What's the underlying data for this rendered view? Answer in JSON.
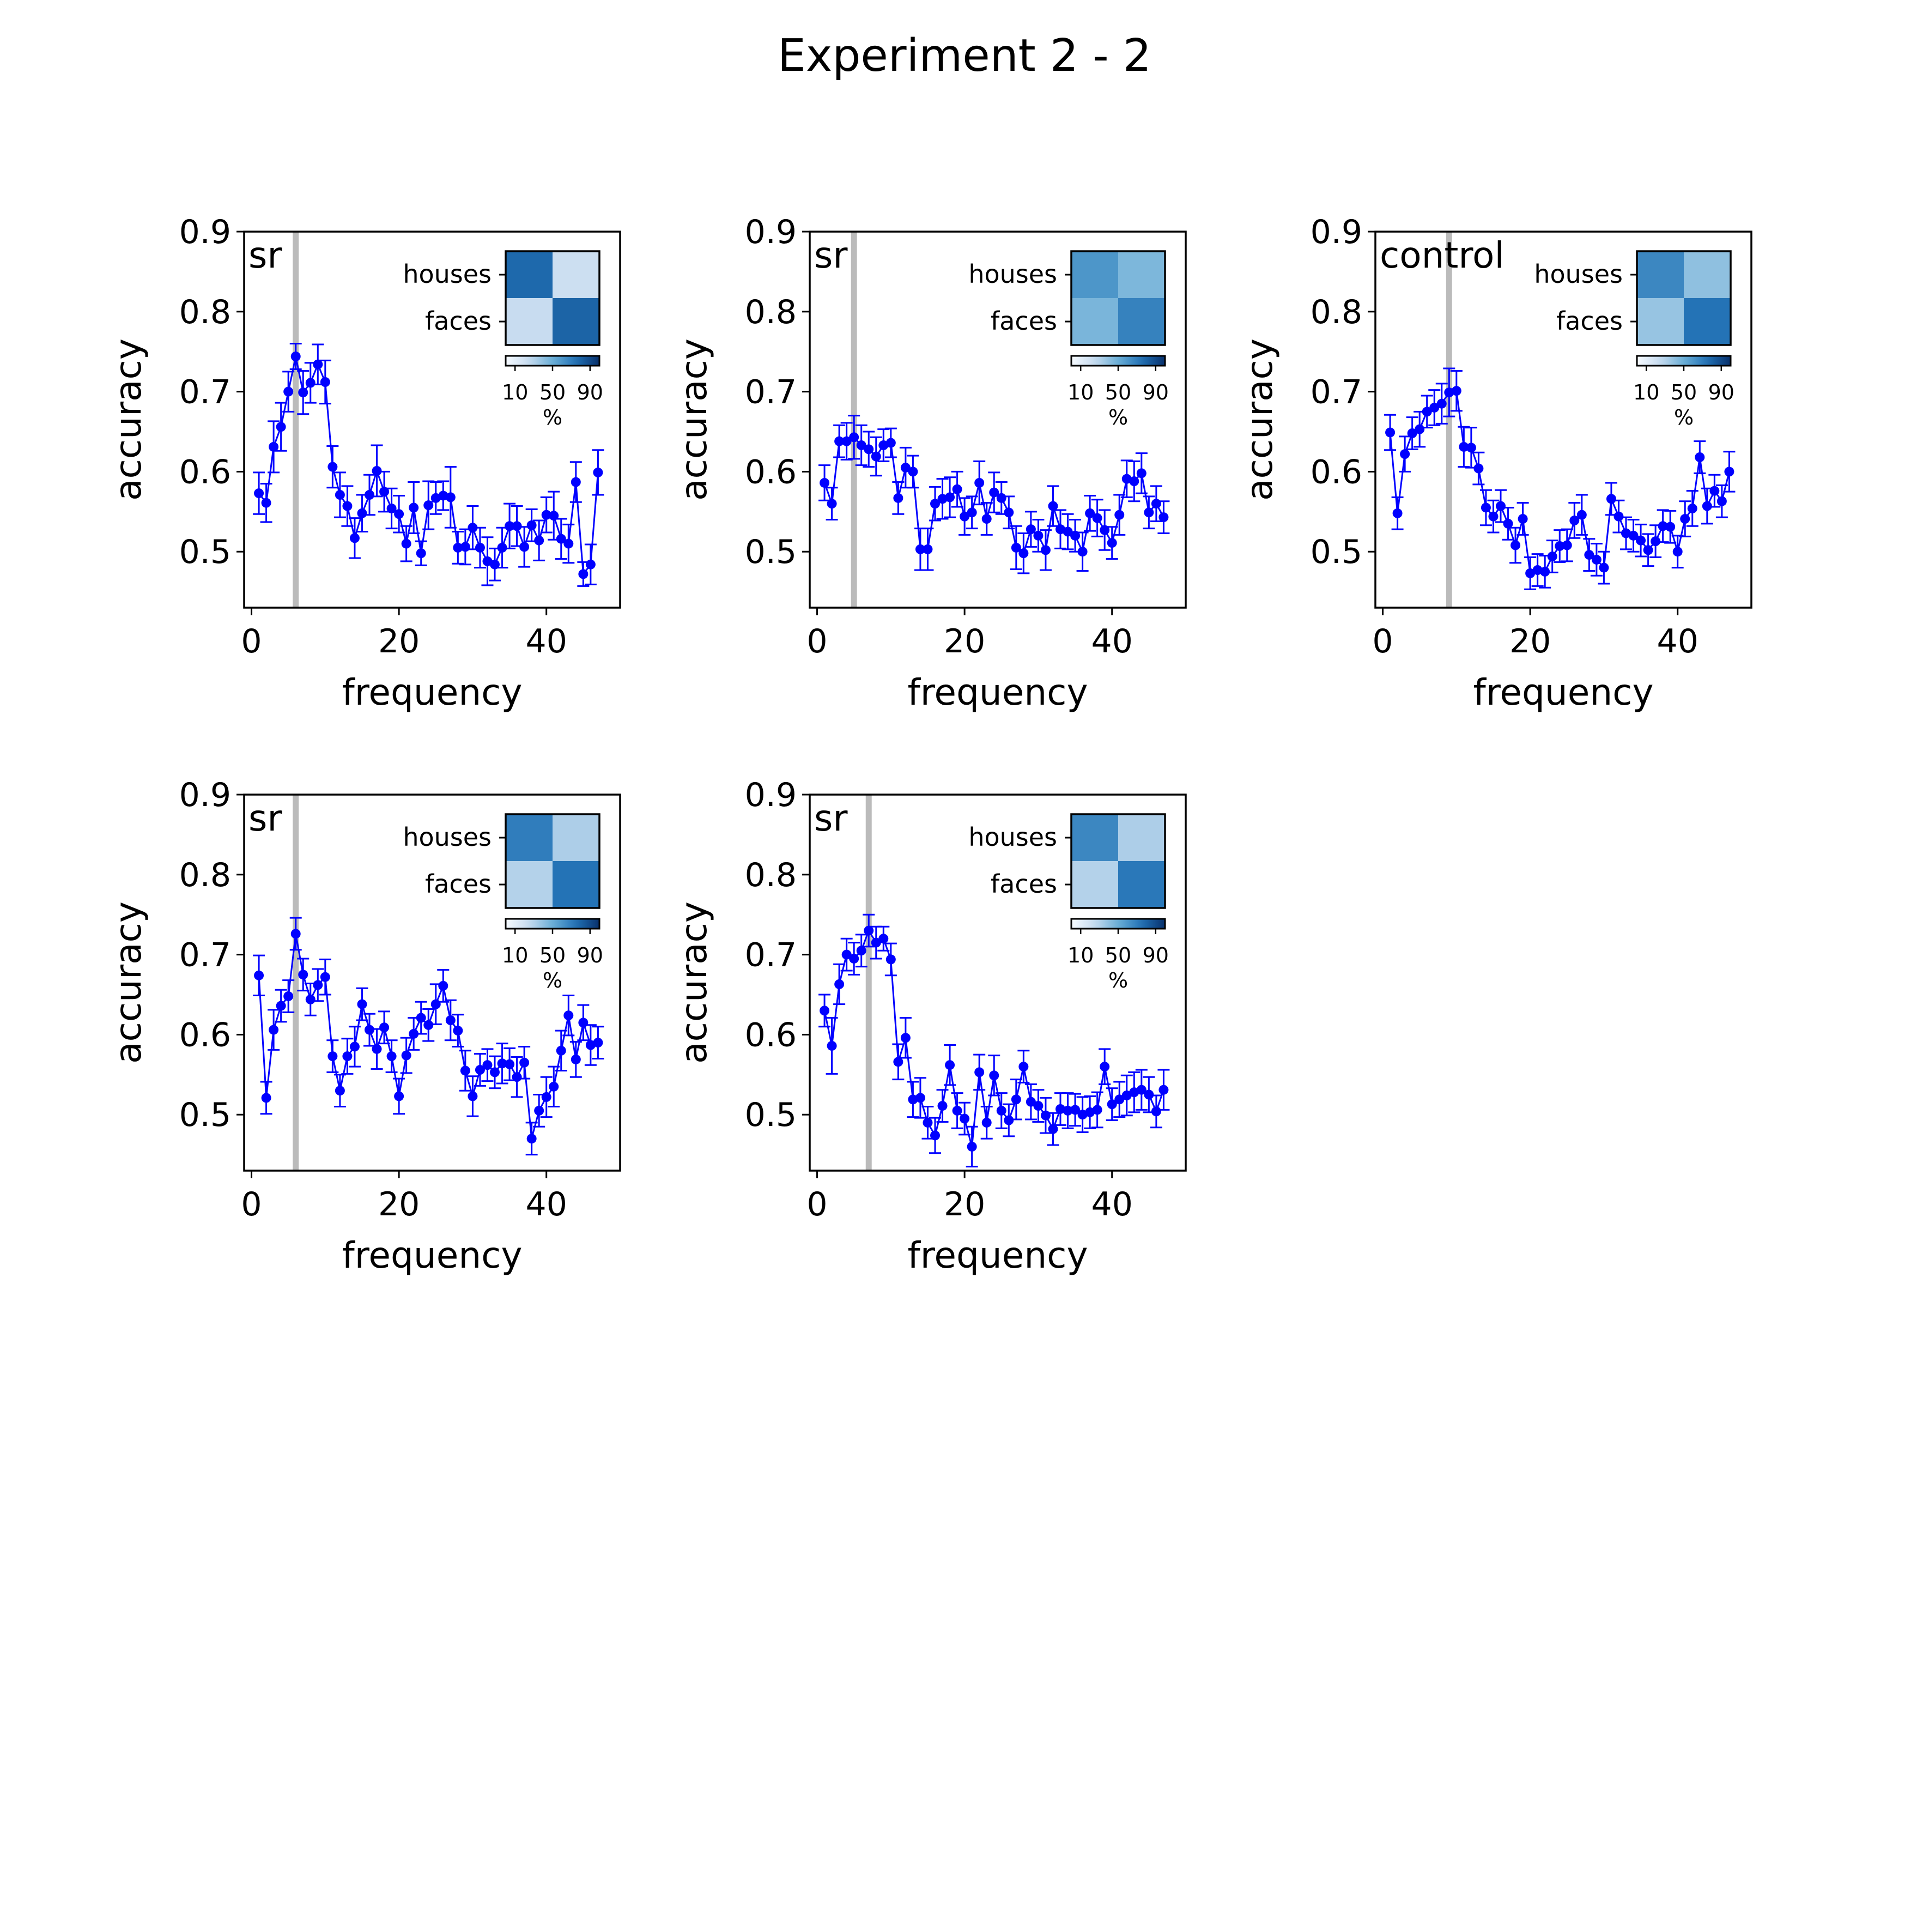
{
  "figure": {
    "title": "Experiment 2 - 2"
  },
  "chart_data": [
    {
      "type": "line",
      "label": "sr",
      "xlabel": "frequency",
      "ylabel": "accuracy",
      "xlim": [
        -1,
        50
      ],
      "ylim": [
        0.43,
        0.9
      ],
      "xticks": [
        0,
        20,
        40
      ],
      "yticks": [
        0.5,
        0.6,
        0.7,
        0.8,
        0.9
      ],
      "marker_x": 6,
      "x": [
        1,
        2,
        3,
        4,
        5,
        6,
        7,
        8,
        9,
        10,
        11,
        12,
        13,
        14,
        15,
        16,
        17,
        18,
        19,
        20,
        21,
        22,
        23,
        24,
        25,
        26,
        27,
        28,
        29,
        30,
        31,
        32,
        33,
        34,
        35,
        36,
        37,
        38,
        39,
        40,
        41,
        42,
        43,
        44,
        45,
        46,
        47
      ],
      "y": [
        0.573,
        0.561,
        0.631,
        0.656,
        0.7,
        0.744,
        0.699,
        0.711,
        0.734,
        0.712,
        0.606,
        0.571,
        0.557,
        0.517,
        0.548,
        0.571,
        0.601,
        0.575,
        0.554,
        0.547,
        0.51,
        0.555,
        0.498,
        0.558,
        0.567,
        0.57,
        0.568,
        0.505,
        0.506,
        0.53,
        0.505,
        0.488,
        0.484,
        0.505,
        0.532,
        0.532,
        0.506,
        0.533,
        0.514,
        0.546,
        0.545,
        0.516,
        0.51,
        0.587,
        0.472,
        0.484,
        0.599
      ],
      "err": [
        0.026,
        0.024,
        0.032,
        0.03,
        0.025,
        0.016,
        0.027,
        0.025,
        0.025,
        0.027,
        0.026,
        0.028,
        0.025,
        0.025,
        0.023,
        0.025,
        0.032,
        0.025,
        0.025,
        0.023,
        0.022,
        0.032,
        0.015,
        0.03,
        0.02,
        0.018,
        0.038,
        0.02,
        0.022,
        0.027,
        0.025,
        0.03,
        0.02,
        0.025,
        0.028,
        0.025,
        0.025,
        0.02,
        0.025,
        0.022,
        0.03,
        0.025,
        0.024,
        0.025,
        0.015,
        0.025,
        0.028
      ],
      "confusion": {
        "rows": [
          "houses",
          "faces"
        ],
        "values": [
          [
            78,
            22
          ],
          [
            24,
            80
          ]
        ]
      },
      "colorbar": {
        "ticks": [
          "10",
          "50",
          "90"
        ],
        "label": "%"
      }
    },
    {
      "type": "line",
      "label": "sr",
      "xlabel": "frequency",
      "ylabel": "accuracy",
      "xlim": [
        -1,
        50
      ],
      "ylim": [
        0.43,
        0.9
      ],
      "xticks": [
        0,
        20,
        40
      ],
      "yticks": [
        0.5,
        0.6,
        0.7,
        0.8,
        0.9
      ],
      "marker_x": 5,
      "x": [
        1,
        2,
        3,
        4,
        5,
        6,
        7,
        8,
        9,
        10,
        11,
        12,
        13,
        14,
        15,
        16,
        17,
        18,
        19,
        20,
        21,
        22,
        23,
        24,
        25,
        26,
        27,
        28,
        29,
        30,
        31,
        32,
        33,
        34,
        35,
        36,
        37,
        38,
        39,
        40,
        41,
        42,
        43,
        44,
        45,
        46,
        47
      ],
      "y": [
        0.586,
        0.56,
        0.638,
        0.638,
        0.643,
        0.633,
        0.628,
        0.619,
        0.633,
        0.636,
        0.567,
        0.605,
        0.6,
        0.503,
        0.503,
        0.56,
        0.566,
        0.568,
        0.578,
        0.544,
        0.549,
        0.586,
        0.541,
        0.574,
        0.567,
        0.549,
        0.505,
        0.498,
        0.528,
        0.52,
        0.502,
        0.557,
        0.528,
        0.525,
        0.52,
        0.5,
        0.548,
        0.542,
        0.527,
        0.511,
        0.546,
        0.591,
        0.588,
        0.598,
        0.549,
        0.56,
        0.543
      ],
      "err": [
        0.022,
        0.02,
        0.02,
        0.023,
        0.027,
        0.025,
        0.022,
        0.024,
        0.02,
        0.018,
        0.02,
        0.025,
        0.02,
        0.026,
        0.026,
        0.021,
        0.025,
        0.025,
        0.022,
        0.023,
        0.02,
        0.027,
        0.02,
        0.025,
        0.02,
        0.02,
        0.027,
        0.025,
        0.022,
        0.02,
        0.025,
        0.025,
        0.024,
        0.022,
        0.02,
        0.024,
        0.022,
        0.023,
        0.025,
        0.02,
        0.025,
        0.023,
        0.025,
        0.025,
        0.02,
        0.022,
        0.02
      ],
      "confusion": {
        "rows": [
          "houses",
          "faces"
        ],
        "values": [
          [
            60,
            45
          ],
          [
            46,
            68
          ]
        ]
      },
      "colorbar": {
        "ticks": [
          "10",
          "50",
          "90"
        ],
        "label": "%"
      }
    },
    {
      "type": "line",
      "label": "control",
      "xlabel": "frequency",
      "ylabel": "accuracy",
      "xlim": [
        -1,
        50
      ],
      "ylim": [
        0.43,
        0.9
      ],
      "xticks": [
        0,
        20,
        40
      ],
      "yticks": [
        0.5,
        0.6,
        0.7,
        0.8,
        0.9
      ],
      "marker_x": 9,
      "x": [
        1,
        2,
        3,
        4,
        5,
        6,
        7,
        8,
        9,
        10,
        11,
        12,
        13,
        14,
        15,
        16,
        17,
        18,
        19,
        20,
        21,
        22,
        23,
        24,
        25,
        26,
        27,
        28,
        29,
        30,
        31,
        32,
        33,
        34,
        35,
        36,
        37,
        38,
        39,
        40,
        41,
        42,
        43,
        44,
        45,
        46,
        47
      ],
      "y": [
        0.649,
        0.548,
        0.622,
        0.648,
        0.653,
        0.675,
        0.68,
        0.685,
        0.699,
        0.701,
        0.631,
        0.63,
        0.604,
        0.555,
        0.544,
        0.557,
        0.535,
        0.508,
        0.541,
        0.473,
        0.477,
        0.475,
        0.494,
        0.507,
        0.508,
        0.539,
        0.546,
        0.496,
        0.49,
        0.48,
        0.566,
        0.544,
        0.523,
        0.52,
        0.514,
        0.502,
        0.513,
        0.532,
        0.531,
        0.5,
        0.541,
        0.554,
        0.618,
        0.557,
        0.576,
        0.563,
        0.6
      ],
      "err": [
        0.022,
        0.02,
        0.022,
        0.02,
        0.022,
        0.02,
        0.022,
        0.025,
        0.03,
        0.025,
        0.025,
        0.025,
        0.02,
        0.022,
        0.02,
        0.02,
        0.02,
        0.022,
        0.02,
        0.02,
        0.02,
        0.02,
        0.02,
        0.02,
        0.02,
        0.022,
        0.025,
        0.02,
        0.02,
        0.02,
        0.02,
        0.02,
        0.02,
        0.02,
        0.02,
        0.02,
        0.02,
        0.02,
        0.02,
        0.02,
        0.022,
        0.022,
        0.02,
        0.022,
        0.02,
        0.02,
        0.025
      ],
      "confusion": {
        "rows": [
          "houses",
          "faces"
        ],
        "values": [
          [
            66,
            40
          ],
          [
            38,
            74
          ]
        ]
      },
      "colorbar": {
        "ticks": [
          "10",
          "50",
          "90"
        ],
        "label": "%"
      }
    },
    {
      "type": "line",
      "label": "sr",
      "xlabel": "frequency",
      "ylabel": "accuracy",
      "xlim": [
        -1,
        50
      ],
      "ylim": [
        0.43,
        0.9
      ],
      "xticks": [
        0,
        20,
        40
      ],
      "yticks": [
        0.5,
        0.6,
        0.7,
        0.8,
        0.9
      ],
      "marker_x": 6,
      "x": [
        1,
        2,
        3,
        4,
        5,
        6,
        7,
        8,
        9,
        10,
        11,
        12,
        13,
        14,
        15,
        16,
        17,
        18,
        19,
        20,
        21,
        22,
        23,
        24,
        25,
        26,
        27,
        28,
        29,
        30,
        31,
        32,
        33,
        34,
        35,
        36,
        37,
        38,
        39,
        40,
        41,
        42,
        43,
        44,
        45,
        46,
        47
      ],
      "y": [
        0.674,
        0.521,
        0.606,
        0.636,
        0.648,
        0.726,
        0.675,
        0.644,
        0.662,
        0.672,
        0.573,
        0.53,
        0.573,
        0.585,
        0.638,
        0.606,
        0.582,
        0.609,
        0.573,
        0.523,
        0.574,
        0.601,
        0.621,
        0.612,
        0.638,
        0.661,
        0.618,
        0.605,
        0.555,
        0.523,
        0.556,
        0.562,
        0.553,
        0.564,
        0.563,
        0.547,
        0.565,
        0.47,
        0.505,
        0.522,
        0.535,
        0.58,
        0.624,
        0.569,
        0.615,
        0.587,
        0.59
      ],
      "err": [
        0.025,
        0.02,
        0.025,
        0.02,
        0.02,
        0.02,
        0.02,
        0.02,
        0.02,
        0.022,
        0.02,
        0.02,
        0.022,
        0.025,
        0.02,
        0.02,
        0.025,
        0.02,
        0.02,
        0.022,
        0.022,
        0.02,
        0.02,
        0.02,
        0.025,
        0.02,
        0.025,
        0.02,
        0.025,
        0.025,
        0.02,
        0.02,
        0.02,
        0.025,
        0.02,
        0.025,
        0.02,
        0.02,
        0.02,
        0.025,
        0.025,
        0.025,
        0.025,
        0.022,
        0.022,
        0.025,
        0.02
      ],
      "confusion": {
        "rows": [
          "houses",
          "faces"
        ],
        "values": [
          [
            70,
            32
          ],
          [
            30,
            74
          ]
        ]
      },
      "colorbar": {
        "ticks": [
          "10",
          "50",
          "90"
        ],
        "label": "%"
      }
    },
    {
      "type": "line",
      "label": "sr",
      "xlabel": "frequency",
      "ylabel": "accuracy",
      "xlim": [
        -1,
        50
      ],
      "ylim": [
        0.43,
        0.9
      ],
      "xticks": [
        0,
        20,
        40
      ],
      "yticks": [
        0.5,
        0.6,
        0.7,
        0.8,
        0.9
      ],
      "marker_x": 7,
      "x": [
        1,
        2,
        3,
        4,
        5,
        6,
        7,
        8,
        9,
        10,
        11,
        12,
        13,
        14,
        15,
        16,
        17,
        18,
        19,
        20,
        21,
        22,
        23,
        24,
        25,
        26,
        27,
        28,
        29,
        30,
        31,
        32,
        33,
        34,
        35,
        36,
        37,
        38,
        39,
        40,
        41,
        42,
        43,
        44,
        45,
        46,
        47
      ],
      "y": [
        0.63,
        0.586,
        0.663,
        0.7,
        0.695,
        0.705,
        0.73,
        0.715,
        0.72,
        0.694,
        0.566,
        0.596,
        0.519,
        0.521,
        0.49,
        0.474,
        0.511,
        0.562,
        0.505,
        0.495,
        0.46,
        0.553,
        0.49,
        0.549,
        0.505,
        0.493,
        0.519,
        0.56,
        0.516,
        0.511,
        0.499,
        0.482,
        0.507,
        0.505,
        0.506,
        0.5,
        0.503,
        0.506,
        0.56,
        0.513,
        0.519,
        0.524,
        0.528,
        0.531,
        0.525,
        0.504,
        0.531
      ],
      "err": [
        0.02,
        0.035,
        0.025,
        0.02,
        0.02,
        0.02,
        0.02,
        0.02,
        0.015,
        0.02,
        0.022,
        0.025,
        0.022,
        0.025,
        0.02,
        0.022,
        0.02,
        0.025,
        0.022,
        0.02,
        0.025,
        0.022,
        0.02,
        0.025,
        0.022,
        0.02,
        0.025,
        0.02,
        0.022,
        0.02,
        0.022,
        0.02,
        0.02,
        0.022,
        0.02,
        0.022,
        0.02,
        0.022,
        0.022,
        0.02,
        0.022,
        0.025,
        0.025,
        0.025,
        0.022,
        0.02,
        0.025
      ],
      "confusion": {
        "rows": [
          "houses",
          "faces"
        ],
        "values": [
          [
            66,
            32
          ],
          [
            30,
            72
          ]
        ]
      },
      "colorbar": {
        "ticks": [
          "10",
          "50",
          "90"
        ],
        "label": "%"
      }
    }
  ]
}
